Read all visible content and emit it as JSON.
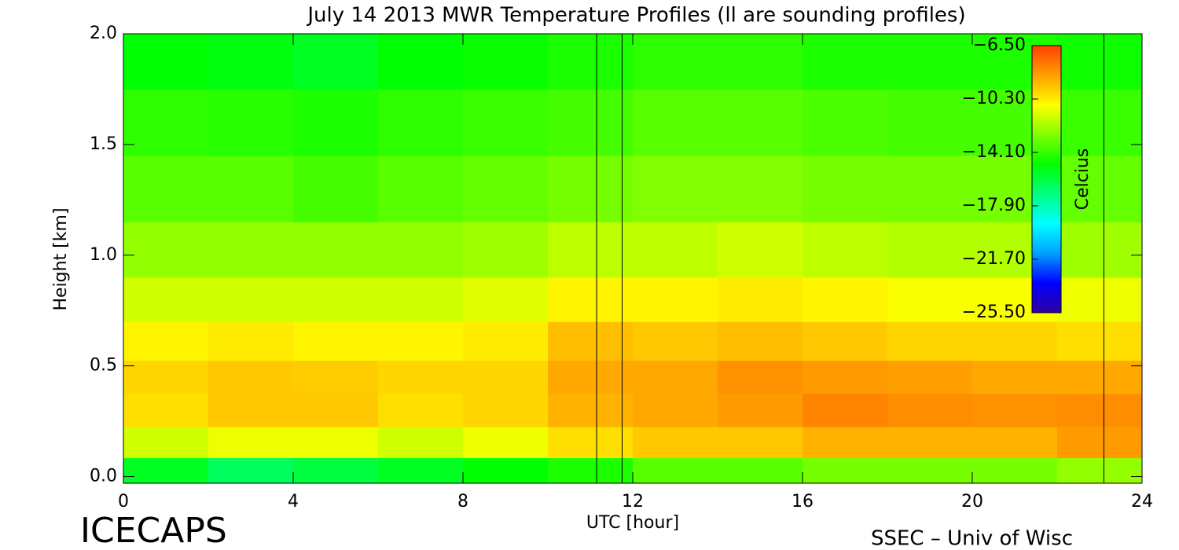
{
  "chart_data": {
    "type": "heatmap",
    "title": "July 14 2013 MWR Temperature Profiles (ll are sounding profiles)",
    "xlabel": "UTC [hour]",
    "ylabel": "Height [km]",
    "left_caption": "ICECAPS",
    "right_caption": "SSEC – Univ of Wisc",
    "x": [
      1,
      3,
      5,
      7,
      9,
      11,
      13,
      15,
      17,
      19,
      21,
      23
    ],
    "y": [
      0.02,
      0.15,
      0.3,
      0.45,
      0.6,
      0.8,
      1.0,
      1.3,
      1.6,
      1.9
    ],
    "z": [
      [
        -15.5,
        -16.5,
        -16.0,
        -15.5,
        -15.0,
        -14.5,
        -13.5,
        -13.5,
        -13.0,
        -13.0,
        -13.0,
        -12.5
      ],
      [
        -11.5,
        -11.0,
        -11.0,
        -11.5,
        -11.0,
        -10.0,
        -9.5,
        -9.5,
        -9.0,
        -9.0,
        -9.0,
        -8.5
      ],
      [
        -10.0,
        -9.5,
        -9.5,
        -10.0,
        -9.8,
        -9.0,
        -8.8,
        -8.5,
        -8.0,
        -8.2,
        -8.3,
        -8.2
      ],
      [
        -9.8,
        -9.5,
        -9.6,
        -9.8,
        -9.8,
        -8.8,
        -8.8,
        -8.3,
        -8.5,
        -8.6,
        -8.8,
        -8.8
      ],
      [
        -10.5,
        -10.3,
        -10.5,
        -10.5,
        -10.3,
        -9.3,
        -9.5,
        -9.3,
        -9.5,
        -9.8,
        -9.8,
        -10.0
      ],
      [
        -11.5,
        -11.5,
        -11.5,
        -11.5,
        -11.2,
        -10.5,
        -10.5,
        -10.3,
        -10.5,
        -10.8,
        -10.8,
        -11.0
      ],
      [
        -12.5,
        -12.5,
        -12.5,
        -12.5,
        -12.3,
        -11.8,
        -11.8,
        -11.5,
        -11.8,
        -12.0,
        -12.0,
        -12.3
      ],
      [
        -13.5,
        -13.5,
        -13.8,
        -13.5,
        -13.3,
        -13.0,
        -12.8,
        -12.8,
        -13.0,
        -13.0,
        -13.0,
        -13.3
      ],
      [
        -14.2,
        -14.3,
        -14.5,
        -14.2,
        -14.0,
        -13.8,
        -13.5,
        -13.5,
        -13.7,
        -13.8,
        -13.8,
        -14.0
      ],
      [
        -15.0,
        -15.2,
        -15.5,
        -15.0,
        -14.8,
        -14.5,
        -14.2,
        -14.2,
        -14.5,
        -14.5,
        -14.5,
        -14.7
      ]
    ],
    "soundings": [
      11.15,
      11.75,
      23.1
    ],
    "xlim": [
      0,
      24
    ],
    "xticks": [
      0,
      4,
      8,
      12,
      16,
      20,
      24
    ],
    "ylim": [
      -0.03,
      2.0
    ],
    "yticks": [
      {
        "value": 0,
        "label": "0.0"
      },
      0.5,
      {
        "value": 1,
        "label": "1.0"
      },
      1.5,
      {
        "value": 2,
        "label": "2.0"
      }
    ],
    "colormap": [
      "#3000a0",
      "#0000ff",
      "#00a0ff",
      "#00ffff",
      "#00ff80",
      "#00ff00",
      "#80ff00",
      "#ffff00",
      "#ffa000",
      "#ff4000"
    ],
    "colorbar": {
      "label": "Celcius",
      "zlim": [
        -25.5,
        -6.5
      ],
      "ticks": [
        {
          "value": -6.5,
          "label": "−6.50"
        },
        {
          "value": -10.3,
          "label": "−10.30"
        },
        {
          "value": -14.1,
          "label": "−14.10"
        },
        {
          "value": -17.9,
          "label": "−17.90"
        },
        {
          "value": -21.7,
          "label": "−21.70"
        },
        {
          "value": -25.5,
          "label": "−25.50"
        }
      ]
    }
  }
}
